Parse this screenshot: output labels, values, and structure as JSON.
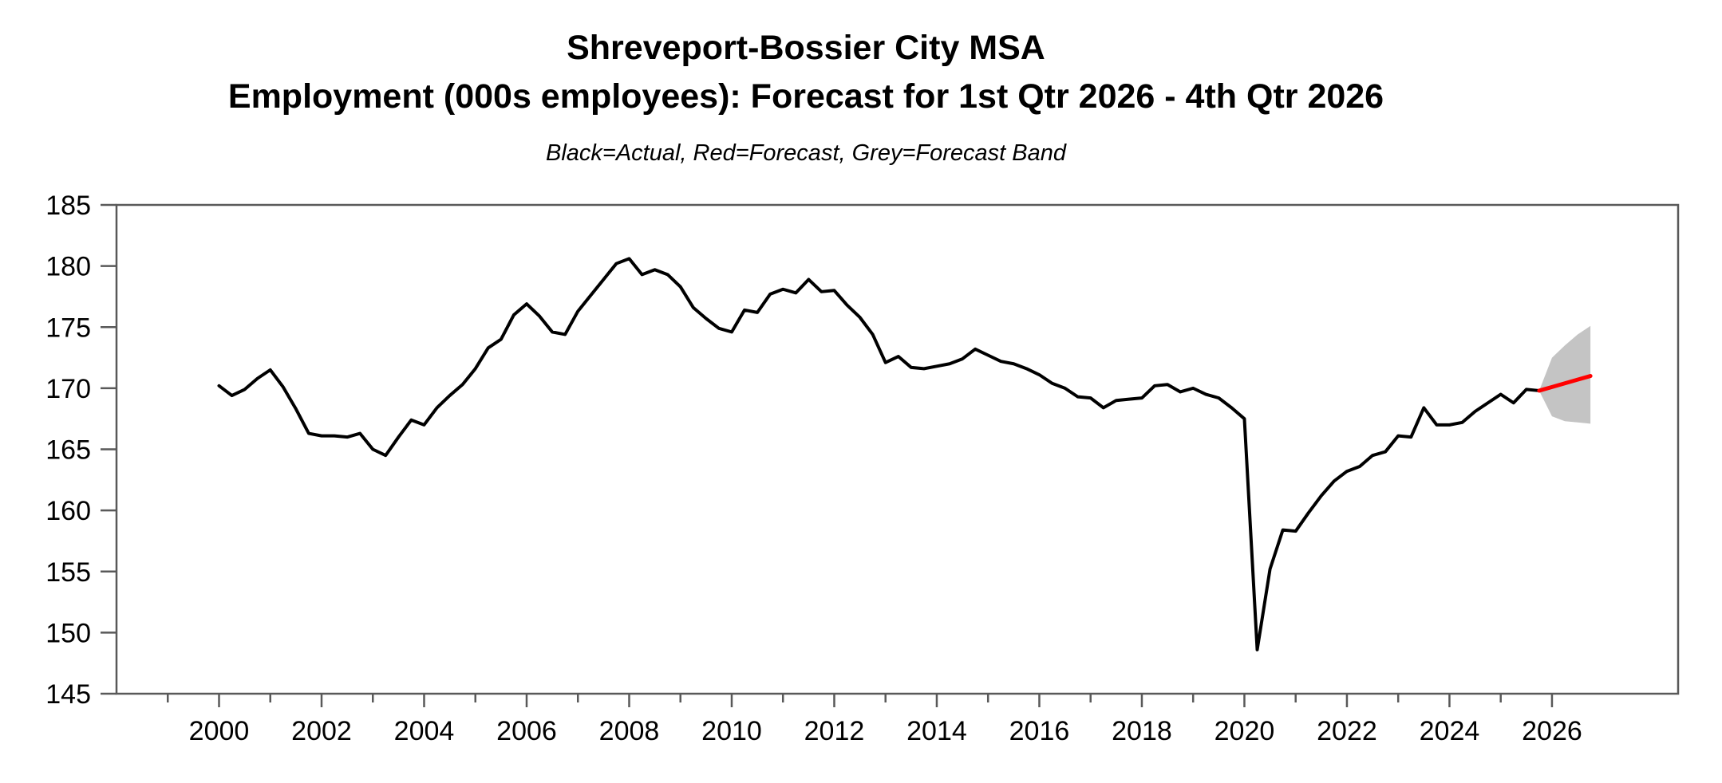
{
  "header": {
    "title_line1": "Shreveport-Bossier City MSA",
    "title_line2": "Employment (000s employees): Forecast for 1st Qtr 2026 - 4th Qtr 2026",
    "subtitle": "Black=Actual, Red=Forecast, Grey=Forecast Band"
  },
  "chart_data": {
    "type": "line",
    "title": "Shreveport-Bossier City MSA Employment (000s employees): Forecast for 1st Qtr 2026 - 4th Qtr 2026",
    "legend_note": "Black=Actual, Red=Forecast, Grey=Forecast Band",
    "xlabel": "",
    "ylabel": "Employment (000s employees)",
    "ylim": [
      145,
      185
    ],
    "xlim": [
      1998.0,
      2028.46
    ],
    "grid": false,
    "legend_position": "none",
    "y_ticks": [
      145,
      150,
      155,
      160,
      165,
      170,
      175,
      180,
      185
    ],
    "x_major_ticks": [
      2000,
      2002,
      2004,
      2006,
      2008,
      2010,
      2012,
      2014,
      2016,
      2018,
      2020,
      2022,
      2024,
      2026
    ],
    "x_minor_ticks": [
      1999,
      2001,
      2003,
      2005,
      2007,
      2009,
      2011,
      2013,
      2015,
      2017,
      2019,
      2021,
      2023,
      2025
    ],
    "colors": {
      "actual": "#000000",
      "forecast": "#ff0000",
      "band": "#c4c4c4",
      "axis": "#595959"
    },
    "series": [
      {
        "name": "Actual (quarterly)",
        "x_start": 2000.0,
        "x_step": 0.25,
        "values": [
          170.2,
          169.4,
          169.9,
          170.8,
          171.5,
          170.1,
          168.3,
          166.3,
          166.1,
          166.1,
          166.0,
          166.3,
          165.0,
          164.5,
          166.0,
          167.4,
          167.0,
          168.4,
          169.4,
          170.3,
          171.6,
          173.3,
          174.0,
          176.0,
          176.9,
          175.9,
          174.6,
          174.4,
          176.3,
          177.6,
          178.9,
          180.2,
          180.6,
          179.3,
          179.7,
          179.3,
          178.3,
          176.6,
          175.7,
          174.9,
          174.6,
          176.4,
          176.2,
          177.7,
          178.1,
          177.8,
          178.9,
          177.9,
          178.0,
          176.8,
          175.8,
          174.4,
          172.1,
          172.6,
          171.7,
          171.6,
          171.8,
          172.0,
          172.4,
          173.2,
          172.7,
          172.2,
          172.0,
          171.6,
          171.1,
          170.4,
          170.0,
          169.3,
          169.2,
          168.4,
          169.0,
          169.1,
          169.2,
          170.2,
          170.3,
          169.7,
          170.0,
          169.5,
          169.2,
          168.4,
          167.5,
          148.6,
          155.2,
          158.4,
          158.3,
          159.8,
          161.2,
          162.4,
          163.2,
          163.6,
          164.5,
          164.8,
          166.1,
          166.0,
          168.4,
          167.0,
          167.0,
          167.2,
          168.1,
          168.8,
          169.5,
          168.8,
          169.9,
          169.8
        ]
      },
      {
        "name": "Forecast",
        "x": [
          2025.75,
          2026.0,
          2026.25,
          2026.5,
          2026.75
        ],
        "values": [
          169.8,
          170.1,
          170.4,
          170.7,
          171.0
        ]
      }
    ],
    "band": {
      "name": "Forecast Band",
      "x": [
        2025.75,
        2026.0,
        2026.25,
        2026.5,
        2026.75
      ],
      "upper": [
        169.8,
        172.5,
        173.5,
        174.4,
        175.1
      ],
      "lower": [
        169.8,
        167.7,
        167.3,
        167.2,
        167.1
      ]
    }
  }
}
